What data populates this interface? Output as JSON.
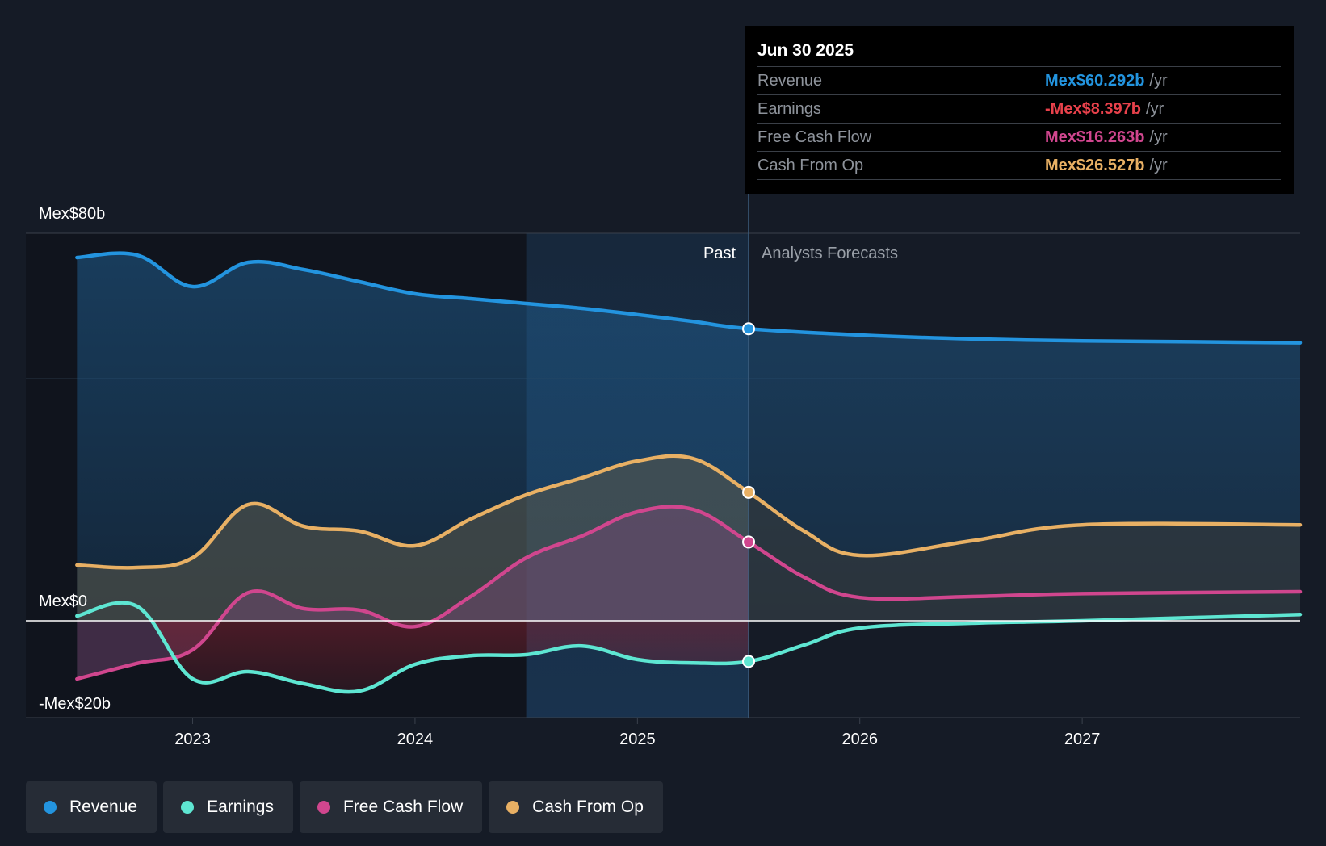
{
  "chart_data": {
    "type": "area",
    "currency": "Mex$",
    "y_axis": {
      "ylim": [
        -20,
        80
      ],
      "ticks": [
        {
          "value": 80,
          "label": "Mex$80b"
        },
        {
          "value": 0,
          "label": "Mex$0"
        },
        {
          "value": -20,
          "label": "-Mex$20b"
        }
      ],
      "gridlines": [
        80,
        50,
        0,
        -20
      ]
    },
    "x_axis": {
      "xlim": [
        2022.25,
        2027.98
      ],
      "ticks": [
        {
          "value": 2023,
          "label": "2023"
        },
        {
          "value": 2024,
          "label": "2024"
        },
        {
          "value": 2025,
          "label": "2025"
        },
        {
          "value": 2026,
          "label": "2026"
        },
        {
          "value": 2027,
          "label": "2027"
        }
      ]
    },
    "regions": {
      "past_start": 2024.5,
      "divider": 2025.5,
      "past_label": "Past",
      "forecast_label": "Analysts Forecasts"
    },
    "series": [
      {
        "name": "Revenue",
        "key": "revenue",
        "color": "#2394df",
        "past": [
          [
            2022.48,
            75.0
          ],
          [
            2022.75,
            75.5
          ],
          [
            2023.0,
            69.0
          ],
          [
            2023.25,
            74.0
          ],
          [
            2023.5,
            72.5
          ],
          [
            2023.75,
            70.0
          ],
          [
            2024.0,
            67.5
          ],
          [
            2024.25,
            66.5
          ],
          [
            2024.5,
            65.5
          ],
          [
            2024.75,
            64.5
          ],
          [
            2025.0,
            63.2
          ],
          [
            2025.25,
            61.8
          ],
          [
            2025.5,
            60.292
          ]
        ],
        "forecast": [
          [
            2025.5,
            60.292
          ],
          [
            2026.0,
            59.0
          ],
          [
            2026.5,
            58.2
          ],
          [
            2027.0,
            57.8
          ],
          [
            2027.5,
            57.6
          ],
          [
            2027.98,
            57.4
          ]
        ]
      },
      {
        "name": "Earnings",
        "key": "earnings",
        "color": "#5ee6d2",
        "past": [
          [
            2022.48,
            1.0
          ],
          [
            2022.75,
            3.0
          ],
          [
            2023.0,
            -12.0
          ],
          [
            2023.25,
            -10.5
          ],
          [
            2023.5,
            -13.0
          ],
          [
            2023.75,
            -14.5
          ],
          [
            2024.0,
            -9.0
          ],
          [
            2024.25,
            -7.2
          ],
          [
            2024.5,
            -7.0
          ],
          [
            2024.75,
            -5.2
          ],
          [
            2025.0,
            -8.0
          ],
          [
            2025.25,
            -8.7
          ],
          [
            2025.5,
            -8.397
          ]
        ],
        "forecast": [
          [
            2025.5,
            -8.397
          ],
          [
            2025.75,
            -5.0
          ],
          [
            2026.0,
            -1.5
          ],
          [
            2026.5,
            -0.5
          ],
          [
            2027.0,
            0.0
          ],
          [
            2027.98,
            1.3
          ]
        ]
      },
      {
        "name": "Free Cash Flow",
        "key": "fcf",
        "color": "#d0468e",
        "past": [
          [
            2022.48,
            -12.0
          ],
          [
            2022.75,
            -8.8
          ],
          [
            2023.0,
            -6.0
          ],
          [
            2023.25,
            5.8
          ],
          [
            2023.5,
            2.5
          ],
          [
            2023.75,
            2.2
          ],
          [
            2024.0,
            -1.2
          ],
          [
            2024.25,
            5.0
          ],
          [
            2024.5,
            13.0
          ],
          [
            2024.75,
            17.5
          ],
          [
            2025.0,
            22.5
          ],
          [
            2025.25,
            23.0
          ],
          [
            2025.5,
            16.263
          ]
        ],
        "forecast": [
          [
            2025.5,
            16.263
          ],
          [
            2025.75,
            9.0
          ],
          [
            2026.0,
            4.8
          ],
          [
            2026.5,
            5.0
          ],
          [
            2027.0,
            5.6
          ],
          [
            2027.98,
            6.0
          ]
        ]
      },
      {
        "name": "Cash From Op",
        "key": "cfo",
        "color": "#e8b064",
        "past": [
          [
            2022.48,
            11.5
          ],
          [
            2022.75,
            11.0
          ],
          [
            2023.0,
            13.0
          ],
          [
            2023.25,
            24.0
          ],
          [
            2023.5,
            19.5
          ],
          [
            2023.75,
            18.5
          ],
          [
            2024.0,
            15.5
          ],
          [
            2024.25,
            21.0
          ],
          [
            2024.5,
            26.0
          ],
          [
            2024.75,
            29.5
          ],
          [
            2025.0,
            33.0
          ],
          [
            2025.25,
            33.5
          ],
          [
            2025.5,
            26.527
          ]
        ],
        "forecast": [
          [
            2025.5,
            26.527
          ],
          [
            2025.75,
            18.5
          ],
          [
            2026.0,
            13.5
          ],
          [
            2026.5,
            16.5
          ],
          [
            2027.0,
            19.8
          ],
          [
            2027.98,
            19.8
          ]
        ]
      }
    ],
    "tooltip": {
      "date": "Jun 30 2025",
      "unit": "/yr",
      "rows": [
        {
          "label": "Revenue",
          "value": "Mex$60.292b",
          "color": "#2394df"
        },
        {
          "label": "Earnings",
          "value": "-Mex$8.397b",
          "color": "#e8414b"
        },
        {
          "label": "Free Cash Flow",
          "value": "Mex$16.263b",
          "color": "#d0468e"
        },
        {
          "label": "Cash From Op",
          "value": "Mex$26.527b",
          "color": "#e8b064"
        }
      ]
    },
    "legend": [
      {
        "label": "Revenue",
        "color": "#2394df"
      },
      {
        "label": "Earnings",
        "color": "#5ee6d2"
      },
      {
        "label": "Free Cash Flow",
        "color": "#d0468e"
      },
      {
        "label": "Cash From Op",
        "color": "#e8b064"
      }
    ]
  }
}
